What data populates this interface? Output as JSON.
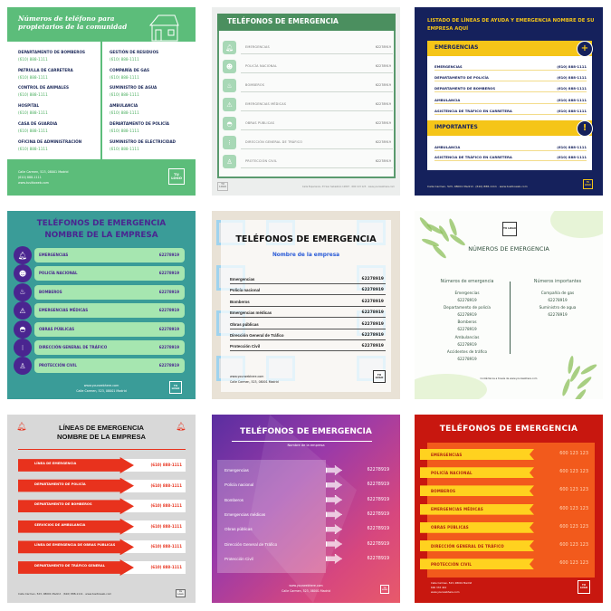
{
  "c1": {
    "title": "Números de teléfono para propietarios de la comunidad",
    "left": [
      {
        "label": "DEPARTAMENTO DE BOMBEROS",
        "phone": "(610) 888-1111"
      },
      {
        "label": "PATRULLA DE CARRETERA",
        "phone": "(610) 888-1111"
      },
      {
        "label": "CONTROL DE ANIMALES",
        "phone": "(610) 888-1111"
      },
      {
        "label": "HOSPITAL",
        "phone": "(610) 888-1111"
      },
      {
        "label": "CASA DE GUARDIA",
        "phone": "(610) 888-1111"
      },
      {
        "label": "OFICINA DE ADMINISTRACIÓN",
        "phone": "(610) 888-1111"
      }
    ],
    "right": [
      {
        "label": "GESTIÓN DE RESIDUOS",
        "phone": "(610) 888-1111"
      },
      {
        "label": "COMPAÑÍA DE GAS",
        "phone": "(610) 888-1111"
      },
      {
        "label": "SUMINISTRO DE AGUA",
        "phone": "(610) 888-1111"
      },
      {
        "label": "AMBULANCIA",
        "phone": "(610) 888-1111"
      },
      {
        "label": "DEPARTAMENTO DE POLICÍA",
        "phone": "(610) 888-1111"
      },
      {
        "label": "SUMINISTRO DE ELECTRICIDAD",
        "phone": "(610) 888-1111"
      }
    ],
    "footer": [
      "Calle Carmen, 523, 08001 Madrid",
      "(610) 888-1111",
      "www.tusitioweb.com"
    ],
    "logo": "TU LOGO"
  },
  "c2": {
    "title": "TELÉFONOS DE EMERGENCIA",
    "rows": [
      {
        "label": "EMERGENCIAS",
        "number": "62278919",
        "icon": "alarm-icon"
      },
      {
        "label": "POLICÍA NACIONAL",
        "number": "62278919",
        "icon": "police-icon"
      },
      {
        "label": "BOMBEROS",
        "number": "62278919",
        "icon": "fire-icon"
      },
      {
        "label": "EMERGENCIAS MÉDICAS",
        "number": "62278919",
        "icon": "siren-icon"
      },
      {
        "label": "OBRAS PÚBLICAS",
        "number": "62278919",
        "icon": "helmet-icon"
      },
      {
        "label": "DIRECCIÓN GENERAL DE TRÁFICO",
        "number": "62278919",
        "icon": "traffic-light-icon"
      },
      {
        "label": "PROTECCIÓN CIVIL",
        "number": "62278919",
        "icon": "person-icon"
      }
    ],
    "footer": "Calle Esperanza, 33 San Sebastián 12897 · 600 123 123 · www.yourwebhere.com",
    "logo": "TU LOGO"
  },
  "c3": {
    "title": "LISTADO DE LÍNEAS DE AYUDA Y EMERGENCIA NOMBRE DE SU EMPRESA AQUÍ",
    "sections": [
      {
        "heading": "EMERGENCIAS",
        "icon": "plus-icon",
        "symbol": "+",
        "rows": [
          {
            "label": "EMERGENCIAS",
            "phone": "(610) 888-1111"
          },
          {
            "label": "DEPARTAMENTO DE POLICÍA",
            "phone": "(610) 888-1111"
          },
          {
            "label": "DEPARTAMENTO DE BOMBEROS",
            "phone": "(610) 888-1111"
          },
          {
            "label": "AMBULANCIA",
            "phone": "(610) 888-1111"
          },
          {
            "label": "ASISTENCIA DE TRÁFICO EN CARRETERA",
            "phone": "(610) 888-1111"
          }
        ]
      },
      {
        "heading": "IMPORTANTES",
        "icon": "exclamation-icon",
        "symbol": "!",
        "rows": [
          {
            "label": "AMBULANCIA",
            "phone": "(610) 888-1111"
          },
          {
            "label": "ASISTENCIA DE TRÁFICO EN CARRETERA",
            "phone": "(610) 888-1111"
          }
        ]
      }
    ],
    "footer": "Calle Carmen, 523, 08001 Madrid · (610) 888-1111 · www.tusitioweb.com",
    "logo": "TU LOGO",
    "accent": "#f5c518"
  },
  "c4": {
    "title": [
      "TELÉFONOS DE EMERGENCIA",
      "NOMBRE DE LA EMPRESA"
    ],
    "rows": [
      {
        "label": "EMERGENCIAS",
        "number": "62278919",
        "icon": "alarm-icon"
      },
      {
        "label": "POLICÍA NACIONAL",
        "number": "62278919",
        "icon": "police-icon"
      },
      {
        "label": "BOMBEROS",
        "number": "62278919",
        "icon": "fire-icon"
      },
      {
        "label": "EMERGENCIAS MÉDICAS",
        "number": "62278919",
        "icon": "siren-icon"
      },
      {
        "label": "OBRAS PÚBLICAS",
        "number": "62278919",
        "icon": "helmet-icon"
      },
      {
        "label": "DIRECCIÓN GENERAL DE TRÁFICO",
        "number": "62278919",
        "icon": "traffic-light-icon"
      },
      {
        "label": "PROTECCIÓN CIVIL",
        "number": "62278919",
        "icon": "person-icon"
      }
    ],
    "footer": [
      "www.yourwebhere.com",
      "Calle Carmen, 523, 08001 Madrid"
    ],
    "logo": "TU LOGO"
  },
  "c5": {
    "title": "TELÉFONOS DE EMERGENCIA",
    "subtitle": "Nombre de la empresa",
    "rows": [
      {
        "label": "Emergencias",
        "number": "62278919"
      },
      {
        "label": "Policía nacional",
        "number": "62278919"
      },
      {
        "label": "Bomberos",
        "number": "62278919"
      },
      {
        "label": "Emergencias médicas",
        "number": "62278919"
      },
      {
        "label": "Obras públicas",
        "number": "62278919"
      },
      {
        "label": "Dirección General de Tráfico",
        "number": "62278919"
      },
      {
        "label": "Protección Civil",
        "number": "62278919"
      }
    ],
    "footer": [
      "www.yourwebhere.com",
      "Calle Carmen, 523, 08001 Madrid"
    ],
    "logo": "TU LOGO"
  },
  "c6": {
    "logo": "TU LOGO",
    "title": "NÚMEROS DE EMERGENCIA",
    "left_heading": "Números de emergencia",
    "left": [
      "Emergencias",
      "62278919",
      "Departamento de policía",
      "62278919",
      "Bomberos",
      "62278919",
      "Ambulancias",
      "62278919",
      "Accidentes de tráfico",
      "62278919"
    ],
    "right_heading": "Números importantes",
    "right": [
      "Compañía de gas",
      "62278919",
      "Suministro de agua",
      "62278919"
    ],
    "footer": "Contáctanos a través de www.yourwebhere.com"
  },
  "c7": {
    "title": [
      "LÍNEAS DE EMERGENCIA",
      "NOMBRE DE LA EMPRESA"
    ],
    "rows": [
      {
        "label": "LÍNEA DE EMERGENCIA",
        "phone": "(610) 888-1111"
      },
      {
        "label": "DEPARTAMENTO DE POLICÍA",
        "phone": "(610) 888-1111"
      },
      {
        "label": "DEPARTAMENTO DE BOMBEROS",
        "phone": "(610) 888-1111"
      },
      {
        "label": "SERVICIOS DE AMBULANCIA",
        "phone": "(610) 888-1111"
      },
      {
        "label": "LÍNEA DE EMERGENCIA DE OBRAS PÚBLICAS",
        "phone": "(610) 888-1111"
      },
      {
        "label": "DEPARTAMENTO DE TRÁFICO GENERAL",
        "phone": "(610) 888-1111"
      }
    ],
    "footer": "Calle Carmen, 523, 08001 Madrid · (610) 888-1111 · www.tusitioweb.com",
    "logo": "TU LOGO"
  },
  "c8": {
    "title": "TELÉFONOS DE EMERGENCIA",
    "subtitle": "Nombre de la empresa",
    "rows": [
      {
        "label": "Emergencias",
        "number": "62278919"
      },
      {
        "label": "Policía nacional",
        "number": "62278919"
      },
      {
        "label": "Bomberos",
        "number": "62278919"
      },
      {
        "label": "Emergencias médicas",
        "number": "62278919"
      },
      {
        "label": "Obras públicas",
        "number": "62278919"
      },
      {
        "label": "Dirección General de Tráfico",
        "number": "62278919"
      },
      {
        "label": "Protección Civil",
        "number": "62278919"
      }
    ],
    "footer": [
      "www.yourwebhere.com",
      "Calle Carmen, 523, 08001 Madrid"
    ],
    "logo": "TU LOGO"
  },
  "c9": {
    "title": "TELÉFONOS DE EMERGENCIA",
    "rows": [
      {
        "label": "EMERGENCIAS",
        "number": "600 123 123"
      },
      {
        "label": "POLICÍA NACIONAL",
        "number": "600 123 123"
      },
      {
        "label": "BOMBEROS",
        "number": "600 123 123"
      },
      {
        "label": "EMERGENCIAS MÉDICAS",
        "number": "600 123 123"
      },
      {
        "label": "OBRAS PÚBLICAS",
        "number": "600 123 123"
      },
      {
        "label": "DIRECCIÓN GENERAL DE TRÁFICO",
        "number": "600 123 123"
      },
      {
        "label": "PROTECCIÓN CIVIL",
        "number": "600 123 123"
      }
    ],
    "footer": [
      "Calle Carmen, 523, 08001 Madrid",
      "600 333 444",
      "www.yourwebhere.com"
    ],
    "logo": "TU LOGO"
  }
}
